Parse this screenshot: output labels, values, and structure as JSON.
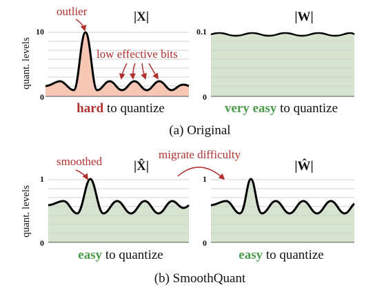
{
  "colors": {
    "red_accent": "#b03030",
    "green_accent": "#4a9a4a",
    "red_fill": "#f7c7b6",
    "green_fill": "#d6e3cf",
    "curve": "#000000"
  },
  "ylabel": "quant. levels",
  "ticks": {
    "zero": "0",
    "ten": "10",
    "one_tenth": "0.1",
    "one": "1"
  },
  "titles": {
    "x": "|X|",
    "w": "|W|",
    "x_hat": "|X̂|",
    "w_hat": "|Ŵ|"
  },
  "annotations": {
    "outlier": "outlier",
    "low_effective_bits": "low effective bits",
    "smoothed": "smoothed",
    "migrate_difficulty": "migrate difficulty"
  },
  "labels": {
    "hard": "hard",
    "very_easy": "very easy",
    "easy_1": "easy",
    "easy_2": "easy",
    "to_quantize_1": " to quantize",
    "to_quantize_2": " to quantize",
    "to_quantize_3": " to quantize",
    "to_quantize_4": " to quantize"
  },
  "captions": {
    "a": "(a) Original",
    "b": "(b) SmoothQuant"
  }
}
